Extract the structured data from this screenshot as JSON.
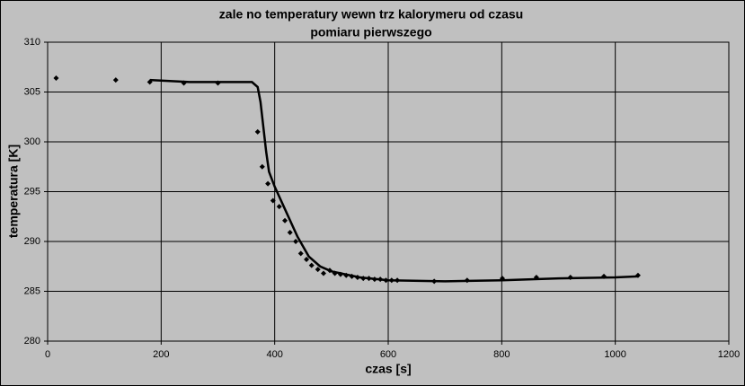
{
  "chart_data": {
    "type": "scatter",
    "title": [
      "zale  no     temperatury wewn  trz kalorymeru od czasu",
      "pomiaru pierwszego"
    ],
    "xlabel": "czas [s]",
    "ylabel": "temperatura [K]",
    "xlim": [
      0,
      1200
    ],
    "xticks": [
      0,
      200,
      400,
      600,
      800,
      1000,
      1200
    ],
    "ylim": [
      280,
      310
    ],
    "yticks": [
      280,
      285,
      290,
      295,
      300,
      305,
      310
    ],
    "grid": true,
    "series": [
      {
        "style": "markers",
        "color": "#000000",
        "x": [
          15,
          120,
          180,
          240,
          300,
          370,
          378,
          388,
          397,
          408,
          418,
          427,
          437,
          446,
          456,
          465,
          476,
          486,
          497,
          506,
          516,
          526,
          536,
          546,
          556,
          566,
          576,
          586,
          596,
          606,
          616,
          681,
          739,
          801,
          861,
          921,
          980,
          1040
        ],
        "values": [
          306.4,
          306.2,
          306.0,
          305.9,
          305.9,
          301.0,
          297.5,
          295.8,
          294.1,
          293.5,
          292.1,
          290.9,
          290.0,
          288.8,
          288.2,
          287.6,
          287.2,
          286.8,
          287.1,
          286.8,
          286.7,
          286.6,
          286.5,
          286.4,
          286.3,
          286.3,
          286.2,
          286.2,
          286.1,
          286.1,
          286.1,
          286.0,
          286.1,
          286.3,
          286.4,
          286.4,
          286.5,
          286.6
        ]
      },
      {
        "style": "line",
        "color": "#000000",
        "x": [
          180,
          250,
          330,
          360,
          370,
          375,
          380,
          385,
          390,
          400,
          420,
          440,
          460,
          480,
          500,
          550,
          600,
          700,
          800,
          900,
          1000,
          1040
        ],
        "values": [
          306.2,
          306.0,
          306.0,
          306.0,
          305.5,
          304.0,
          301.5,
          299.0,
          297.0,
          295.5,
          293.0,
          290.5,
          288.5,
          287.5,
          287.0,
          286.4,
          286.1,
          286.0,
          286.1,
          286.3,
          286.4,
          286.5
        ]
      }
    ]
  }
}
